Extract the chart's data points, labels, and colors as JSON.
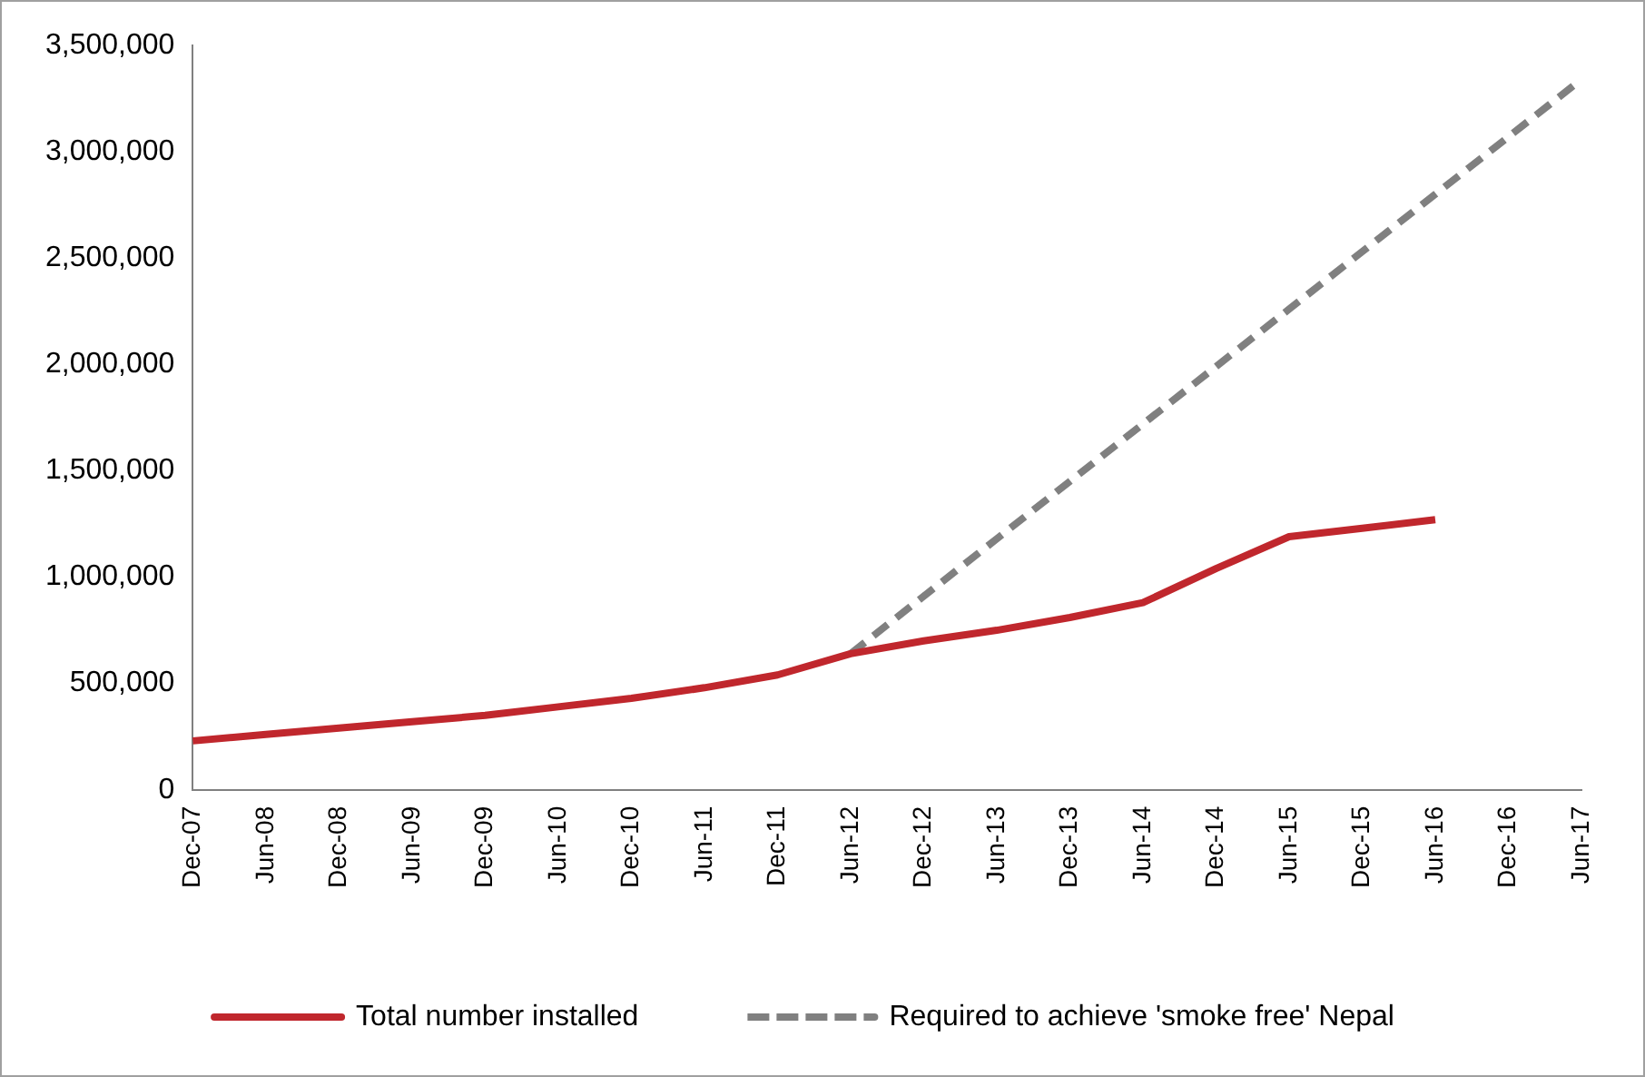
{
  "chart_data": {
    "type": "line",
    "categories": [
      "Dec-07",
      "Jun-08",
      "Dec-08",
      "Jun-09",
      "Dec-09",
      "Jun-10",
      "Dec-10",
      "Jun-11",
      "Dec-11",
      "Jun-12",
      "Dec-12",
      "Jun-13",
      "Dec-13",
      "Jun-14",
      "Dec-14",
      "Jun-15",
      "Dec-15",
      "Jun-16",
      "Dec-16",
      "Jun-17"
    ],
    "series": [
      {
        "name": "Total number installed",
        "color": "#c0272d",
        "line_style": "solid",
        "values": [
          230000,
          260000,
          290000,
          320000,
          350000,
          390000,
          430000,
          480000,
          540000,
          640000,
          700000,
          750000,
          810000,
          880000,
          1040000,
          1190000,
          1230000,
          1270000,
          null,
          null
        ]
      },
      {
        "name": "Required to achieve 'smoke free' Nepal",
        "color": "#808080",
        "line_style": "dashed",
        "values": [
          null,
          null,
          null,
          null,
          null,
          null,
          null,
          null,
          null,
          640000,
          910000,
          1180000,
          1450000,
          1720000,
          1990000,
          2260000,
          2530000,
          2800000,
          3070000,
          3340000
        ]
      }
    ],
    "ylim": [
      0,
      3500000
    ],
    "yticks": [
      0,
      {
        "value": 500000,
        "label": "500,000"
      },
      {
        "value": 1000000,
        "label": "1,000,000"
      },
      {
        "value": 1500000,
        "label": "1,500,000"
      },
      {
        "value": 2000000,
        "label": "2,000,000"
      },
      {
        "value": 2500000,
        "label": "2,500,000"
      },
      {
        "value": 3000000,
        "label": "3,000,000"
      },
      {
        "value": 3500000,
        "label": "3,500,000"
      }
    ],
    "grid": false,
    "legend": "bottom",
    "marker": "none"
  }
}
